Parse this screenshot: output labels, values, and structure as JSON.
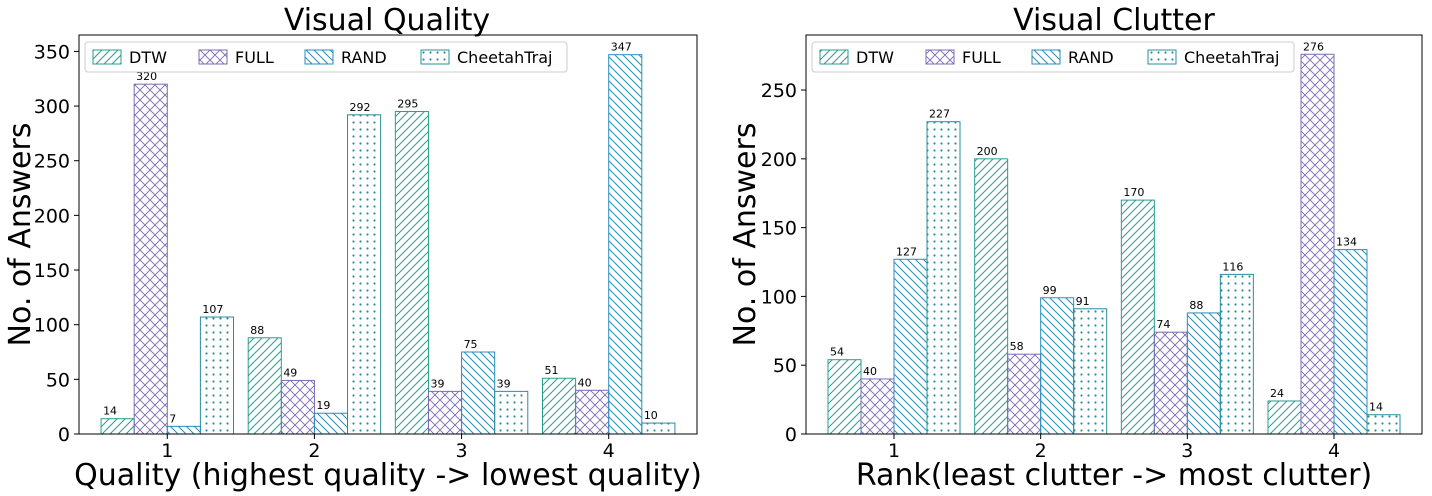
{
  "chart_data": [
    {
      "type": "bar",
      "title": "Visual Quality",
      "xlabel": "Quality (highest quality -> lowest quality)",
      "ylabel": "No. of Answers",
      "categories": [
        "1",
        "2",
        "3",
        "4"
      ],
      "ylim": [
        0,
        365
      ],
      "yticks": [
        0,
        50,
        100,
        150,
        200,
        250,
        300,
        350
      ],
      "legend_position": "top",
      "series": [
        {
          "name": "DTW",
          "values": [
            14,
            88,
            295,
            51
          ],
          "color": "#2a9d8f",
          "hatch": "diagonal-up"
        },
        {
          "name": "FULL",
          "values": [
            320,
            49,
            39,
            40
          ],
          "color": "#7b6bb5",
          "hatch": "cross"
        },
        {
          "name": "RAND",
          "values": [
            7,
            19,
            75,
            347
          ],
          "color": "#2b8cbe",
          "hatch": "diagonal-down"
        },
        {
          "name": "CheetahTraj",
          "values": [
            107,
            292,
            39,
            10
          ],
          "color": "#2a8c9e",
          "hatch": "dots"
        }
      ]
    },
    {
      "type": "bar",
      "title": "Visual Clutter",
      "xlabel": "Rank(least clutter -> most clutter)",
      "ylabel": "No. of Answers",
      "categories": [
        "1",
        "2",
        "3",
        "4"
      ],
      "ylim": [
        0,
        290
      ],
      "yticks": [
        0,
        50,
        100,
        150,
        200,
        250
      ],
      "legend_position": "top",
      "series": [
        {
          "name": "DTW",
          "values": [
            54,
            200,
            170,
            24
          ],
          "color": "#2a9d8f",
          "hatch": "diagonal-up"
        },
        {
          "name": "FULL",
          "values": [
            40,
            58,
            74,
            276
          ],
          "color": "#7b6bb5",
          "hatch": "cross"
        },
        {
          "name": "RAND",
          "values": [
            127,
            99,
            88,
            134
          ],
          "color": "#2b8cbe",
          "hatch": "diagonal-down"
        },
        {
          "name": "CheetahTraj",
          "values": [
            227,
            91,
            116,
            14
          ],
          "color": "#2a8c9e",
          "hatch": "dots"
        }
      ]
    }
  ]
}
